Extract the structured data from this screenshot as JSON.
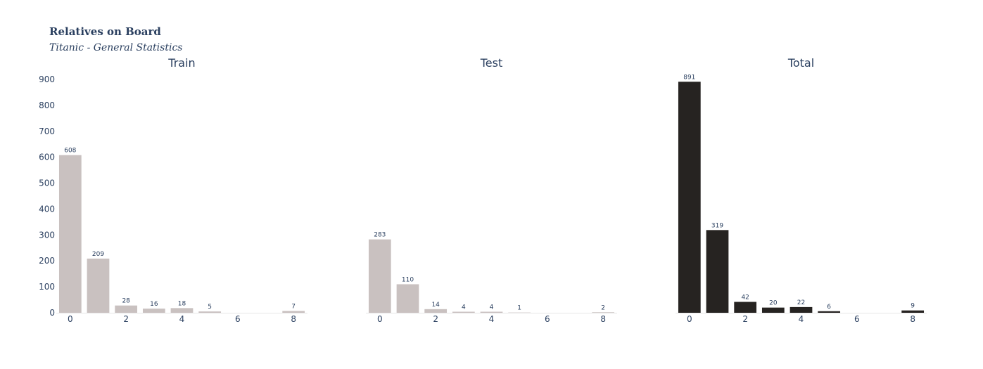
{
  "chart_data": [
    {
      "type": "bar",
      "title": "Train",
      "x": [
        0,
        1,
        2,
        3,
        4,
        5,
        6,
        7,
        8
      ],
      "values": [
        608,
        209,
        28,
        16,
        18,
        5,
        0,
        0,
        7
      ],
      "value_labels": [
        "608",
        "209",
        "28",
        "16",
        "18",
        "5",
        "",
        "",
        "7"
      ],
      "xlabel": "",
      "ylabel": "",
      "xticks": [
        0,
        2,
        4,
        6,
        8
      ],
      "yticks": [
        0,
        100,
        200,
        300,
        400,
        500,
        600,
        700,
        800,
        900
      ],
      "ylim": [
        0,
        900
      ],
      "color": "#c9c1c0",
      "grid": false
    },
    {
      "type": "bar",
      "title": "Test",
      "x": [
        0,
        1,
        2,
        3,
        4,
        5,
        6,
        7,
        8
      ],
      "values": [
        283,
        110,
        14,
        4,
        4,
        1,
        0,
        0,
        2
      ],
      "value_labels": [
        "283",
        "110",
        "14",
        "4",
        "4",
        "1",
        "",
        "",
        "2"
      ],
      "xlabel": "",
      "ylabel": "",
      "xticks": [
        0,
        2,
        4,
        6,
        8
      ],
      "ylim": [
        0,
        900
      ],
      "color": "#c9c1c0",
      "grid": false
    },
    {
      "type": "bar",
      "title": "Total",
      "x": [
        0,
        1,
        2,
        3,
        4,
        5,
        6,
        7,
        8
      ],
      "values": [
        891,
        319,
        42,
        20,
        22,
        6,
        0,
        0,
        9
      ],
      "value_labels": [
        "891",
        "319",
        "42",
        "20",
        "22",
        "6",
        "",
        "",
        "9"
      ],
      "xlabel": "",
      "ylabel": "",
      "xticks": [
        0,
        2,
        4,
        6,
        8
      ],
      "ylim": [
        0,
        900
      ],
      "color": "#262321",
      "grid": false
    }
  ],
  "header": {
    "title": "Relatives on Board",
    "subtitle": "Titanic - General Statistics"
  }
}
